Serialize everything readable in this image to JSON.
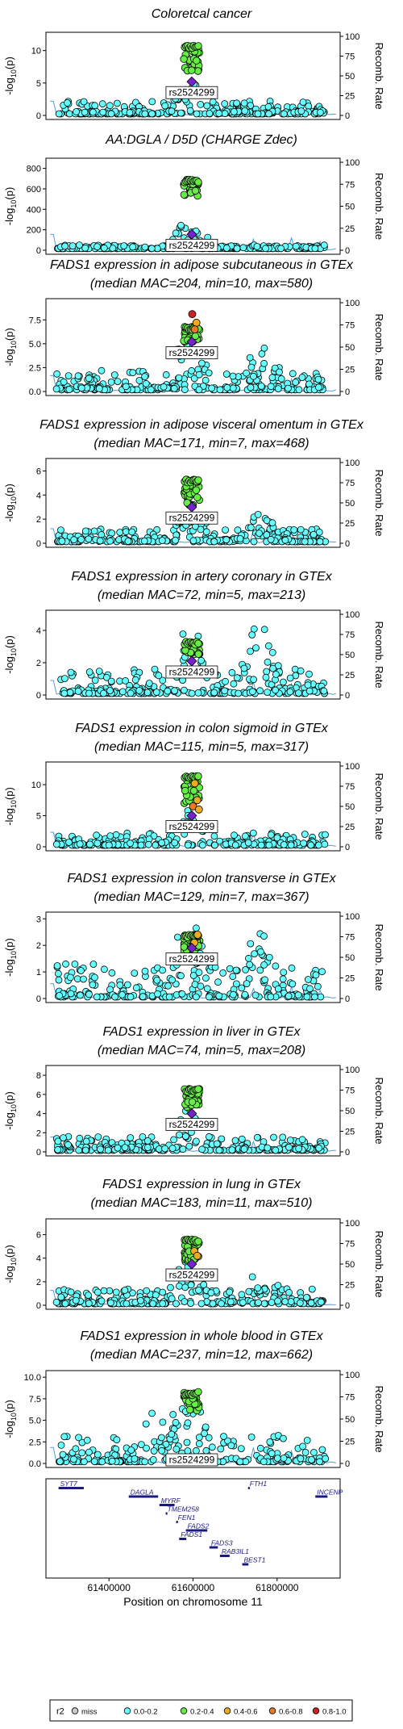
{
  "chart_data": {
    "type": "scatter",
    "lead_variant": "rs2524299",
    "y_axis_label": {
      "base": "-log",
      "sub": "10",
      "rest": "(p)"
    },
    "y2_axis_label": "Recomb. Rate",
    "y2_ticks": [
      "0",
      "25",
      "50",
      "75",
      "100"
    ],
    "x_label": "Position on chromosome 11",
    "x_ticks": [
      "61400000",
      "61600000",
      "61800000"
    ],
    "x_tick_values": [
      61400000,
      61600000,
      61800000
    ],
    "xlim": [
      61250000,
      61950000
    ],
    "panels": [
      {
        "title": [
          "Coloretcal cancer"
        ],
        "yticks": [
          0,
          5,
          10
        ],
        "ylim": [
          0,
          12.2
        ],
        "peak": 10.8,
        "cluster": 6.8,
        "mod": 4.6,
        "bg": 2.2,
        "right_peak": null,
        "lead": 5.2
      },
      {
        "title": [
          "AA:DGLA / D5D (CHARGE Zdec)"
        ],
        "yticks": [
          0,
          200,
          400,
          600,
          800
        ],
        "ylim": [
          0,
          860
        ],
        "peak": 690,
        "cluster": 520,
        "mod": 300,
        "bg": 45,
        "right_peak": null,
        "lead": 155
      },
      {
        "title": [
          "FADS1 expression in adipose subcutaneous in GTEx",
          "(median MAC=204, min=10, max=580)"
        ],
        "yticks": [
          0,
          2.5,
          5.0,
          7.5
        ],
        "ylim": [
          0,
          9.3
        ],
        "peak": 6.8,
        "cluster": 5.2,
        "mod": 4.0,
        "bg": 2.2,
        "right_peak": 3.0,
        "lead": 5.2,
        "extra": [
          {
            "x": 61598000,
            "y": 8.1,
            "c": "r08"
          },
          {
            "x": 61608000,
            "y": 7.2,
            "c": "r04"
          },
          {
            "x": 61604000,
            "y": 6.5,
            "c": "r06"
          }
        ]
      },
      {
        "title": [
          "FADS1 expression in adipose visceral omentum in GTEx",
          "(median MAC=171, min=7, max=468)"
        ],
        "yticks": [
          0,
          2,
          4,
          6
        ],
        "ylim": [
          0,
          6.7
        ],
        "peak": 5.3,
        "cluster": 3.0,
        "mod": 2.6,
        "bg": 1.2,
        "right_peak": 1.4,
        "lead": 3.0
      },
      {
        "title": [
          "FADS1 expression in artery coronary in GTEx",
          "(median MAC=72, min=5, max=213)"
        ],
        "yticks": [
          0,
          2,
          4
        ],
        "ylim": [
          0,
          5.0
        ],
        "peak": 3.3,
        "cluster": 2.5,
        "mod": 3.1,
        "bg": 1.6,
        "right_peak": 4.3,
        "lead": 2.1
      },
      {
        "title": [
          "FADS1 expression in colon sigmoid in GTEx",
          "(median MAC=115, min=5, max=317)"
        ],
        "yticks": [
          0,
          5,
          10
        ],
        "ylim": [
          0,
          13.0
        ],
        "peak": 11.5,
        "cluster": 7.0,
        "mod": 4.5,
        "bg": 2.2,
        "right_peak": null,
        "lead": 5.0,
        "extra": [
          {
            "x": 61604000,
            "y": 10.2,
            "c": "r04"
          },
          {
            "x": 61610000,
            "y": 7.5,
            "c": "r04"
          },
          {
            "x": 61600000,
            "y": 6.5,
            "c": "r06"
          },
          {
            "x": 61614000,
            "y": 6.0,
            "c": "r04"
          }
        ]
      },
      {
        "title": [
          "FADS1 expression in colon transverse in GTEx",
          "(median MAC=129, min=7, max=367)"
        ],
        "yticks": [
          0,
          1,
          2,
          3
        ],
        "ylim": [
          0,
          3.1
        ],
        "peak": 2.4,
        "cluster": 1.7,
        "mod": 2.0,
        "bg": 1.3,
        "right_peak": 1.7,
        "lead": 1.9,
        "extra": [
          {
            "x": 61603000,
            "y": 2.1,
            "c": "r04"
          },
          {
            "x": 61611000,
            "y": 2.4,
            "c": "r04"
          }
        ]
      },
      {
        "title": [
          "FADS1 expression in liver in GTEx",
          "(median MAC=74, min=5, max=208)"
        ],
        "yticks": [
          0,
          2,
          4,
          6,
          8
        ],
        "ylim": [
          0,
          8.6
        ],
        "peak": 6.6,
        "cluster": 4.5,
        "mod": 4.5,
        "bg": 1.6,
        "right_peak": null,
        "lead": 4.0
      },
      {
        "title": [
          "FADS1 expression in lung in GTEx",
          "(median MAC=183, min=11, max=510)"
        ],
        "yticks": [
          0,
          2,
          4,
          6
        ],
        "ylim": [
          0,
          7.0
        ],
        "peak": 5.6,
        "cluster": 3.7,
        "mod": 3.1,
        "bg": 1.4,
        "right_peak": 1.6,
        "lead": 3.5,
        "extra": [
          {
            "x": 61603000,
            "y": 4.6,
            "c": "r04"
          },
          {
            "x": 61610000,
            "y": 4.2,
            "c": "r04"
          }
        ]
      },
      {
        "title": [
          "FADS1 expression in whole blood in GTEx",
          "(median MAC=237, min=12, max=662)"
        ],
        "yticks": [
          0,
          2.5,
          5.0,
          7.5,
          10.0
        ],
        "ylim": [
          0,
          10.3
        ],
        "peak": 8.3,
        "cluster": 6.0,
        "mod": 7.4,
        "bg": 3.3,
        "right_peak": null,
        "lead": 0.3,
        "left_peak": 5.5
      }
    ],
    "genes": [
      {
        "name": "SYT7",
        "start": 61280000,
        "end": 61340000,
        "row": 0,
        "label_pos": "start"
      },
      {
        "name": "FTH1",
        "start": 61731000,
        "end": 61735000,
        "row": 0,
        "label_pos": "start"
      },
      {
        "name": "INCENP",
        "start": 61891000,
        "end": 61920000,
        "row": 1,
        "label_pos": "start"
      },
      {
        "name": "DAGLA",
        "start": 61447000,
        "end": 61517000,
        "row": 1,
        "label_pos": "start"
      },
      {
        "name": "MYRF",
        "start": 61520000,
        "end": 61556000,
        "row": 2,
        "label_pos": "start"
      },
      {
        "name": "TMEM258",
        "start": 61535000,
        "end": 61539000,
        "row": 3,
        "label_pos": "start"
      },
      {
        "name": "FEN1",
        "start": 61560000,
        "end": 61564000,
        "row": 4,
        "label_pos": "start"
      },
      {
        "name": "FADS2",
        "start": 61583000,
        "end": 61634000,
        "row": 5,
        "label_pos": "start"
      },
      {
        "name": "FADS1",
        "start": 61567000,
        "end": 61584000,
        "row": 6,
        "label_pos": "start"
      },
      {
        "name": "FADS3",
        "start": 61639000,
        "end": 61659000,
        "row": 7,
        "label_pos": "start"
      },
      {
        "name": "RAB3IL1",
        "start": 61664000,
        "end": 61687000,
        "row": 8,
        "label_pos": "start"
      },
      {
        "name": "BEST1",
        "start": 61717000,
        "end": 61732000,
        "row": 9,
        "label_pos": "start"
      }
    ],
    "legend": {
      "title": "r2",
      "items": [
        {
          "label": "miss",
          "color": "#cccccc"
        },
        {
          "label": "0.0-0.2",
          "color": "#66ffff"
        },
        {
          "label": "0.2-0.4",
          "color": "#66ee44"
        },
        {
          "label": "0.4-0.6",
          "color": "#eeaa22"
        },
        {
          "label": "0.6-0.8",
          "color": "#ee7722"
        },
        {
          "label": "0.8-1.0",
          "color": "#cc2222"
        }
      ],
      "lead_color": "#7722cc",
      "recomb_color": "#5599dd"
    }
  }
}
